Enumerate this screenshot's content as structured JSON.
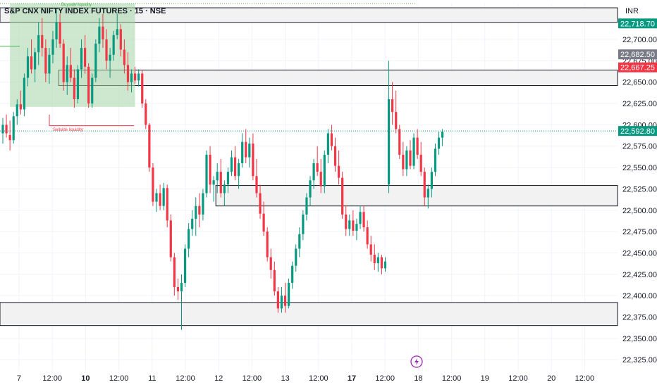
{
  "header": {
    "title": "S&P CNX NIFTY INDEX FUTURES · 15 · NSE",
    "currency": "INR"
  },
  "colors": {
    "up": "#089981",
    "down": "#f23645",
    "grid": "#f0f3fa",
    "zone_fill": "#f2f2f2",
    "zone_border": "#131722",
    "range_fill": "#a5d6a7"
  },
  "chart_data": {
    "type": "candlestick",
    "yticks": [
      22325,
      22350,
      22375,
      22400,
      22425,
      22450,
      22475,
      22500,
      22525,
      22550,
      22575,
      22600,
      22625,
      22650,
      22675,
      22700
    ],
    "ylim": [
      22312,
      22742
    ],
    "xticks": [
      {
        "label": "7",
        "bold": false
      },
      {
        "label": "12:00",
        "bold": false
      },
      {
        "label": "10",
        "bold": true
      },
      {
        "label": "12:00",
        "bold": false
      },
      {
        "label": "11",
        "bold": false
      },
      {
        "label": "12:00",
        "bold": false
      },
      {
        "label": "12",
        "bold": false
      },
      {
        "label": "12:00",
        "bold": false
      },
      {
        "label": "13",
        "bold": false
      },
      {
        "label": "12:00",
        "bold": false
      },
      {
        "label": "17",
        "bold": true
      },
      {
        "label": "12:00",
        "bold": false
      },
      {
        "label": "18",
        "bold": false
      },
      {
        "label": "12:00",
        "bold": false
      },
      {
        "label": "19",
        "bold": false
      },
      {
        "label": "12:00",
        "bold": false
      },
      {
        "label": "20",
        "bold": false
      },
      {
        "label": "12:00",
        "bold": false
      }
    ],
    "price_labels": [
      {
        "name": "level-22718",
        "value": 22718.7,
        "text": "22,718.70",
        "color": "#089981"
      },
      {
        "name": "level-22682",
        "value": 22682.5,
        "text": "22,682.50",
        "color": "#787b86"
      },
      {
        "name": "level-22667",
        "value": 22667.25,
        "text": "22,667.25",
        "color": "#f23645"
      },
      {
        "name": "last-price",
        "value": 22592.8,
        "text": "22,592.80",
        "color": "#089981"
      }
    ],
    "zones": [
      {
        "name": "zone-top",
        "from": 22720,
        "to": 22737,
        "start": 0,
        "end": "right"
      },
      {
        "name": "zone-upper",
        "from": 22646,
        "to": 22664,
        "start": 16,
        "end": "right"
      },
      {
        "name": "zone-middle",
        "from": 22505,
        "to": 22529,
        "start": 60,
        "end": "right"
      },
      {
        "name": "zone-bottom",
        "from": 22365,
        "to": 22392,
        "start": 0,
        "end": "right"
      }
    ],
    "liquidity_notes": [
      "Buyside liquidity",
      "Sellside liquidity"
    ],
    "candles": [
      [
        22590,
        22608,
        22578,
        22600
      ],
      [
        22600,
        22612,
        22585,
        22590
      ],
      [
        22588,
        22605,
        22570,
        22582
      ],
      [
        22582,
        22615,
        22578,
        22610
      ],
      [
        22610,
        22630,
        22600,
        22624
      ],
      [
        22624,
        22640,
        22612,
        22618
      ],
      [
        22618,
        22660,
        22610,
        22655
      ],
      [
        22655,
        22690,
        22645,
        22680
      ],
      [
        22680,
        22700,
        22660,
        22665
      ],
      [
        22665,
        22690,
        22650,
        22685
      ],
      [
        22685,
        22720,
        22670,
        22705
      ],
      [
        22705,
        22725,
        22680,
        22690
      ],
      [
        22690,
        22700,
        22650,
        22660
      ],
      [
        22660,
        22690,
        22648,
        22682
      ],
      [
        22682,
        22710,
        22672,
        22700
      ],
      [
        22700,
        22735,
        22690,
        22720
      ],
      [
        22720,
        22730,
        22690,
        22695
      ],
      [
        22695,
        22700,
        22640,
        22650
      ],
      [
        22650,
        22680,
        22635,
        22670
      ],
      [
        22670,
        22690,
        22650,
        22655
      ],
      [
        22655,
        22665,
        22620,
        22630
      ],
      [
        22630,
        22670,
        22625,
        22665
      ],
      [
        22665,
        22700,
        22655,
        22690
      ],
      [
        22690,
        22705,
        22660,
        22668
      ],
      [
        22668,
        22672,
        22620,
        22625
      ],
      [
        22625,
        22660,
        22620,
        22655
      ],
      [
        22655,
        22700,
        22650,
        22695
      ],
      [
        22695,
        22725,
        22685,
        22715
      ],
      [
        22715,
        22730,
        22690,
        22700
      ],
      [
        22700,
        22712,
        22665,
        22675
      ],
      [
        22675,
        22690,
        22655,
        22682
      ],
      [
        22682,
        22710,
        22675,
        22705
      ],
      [
        22705,
        22730,
        22700,
        22712
      ],
      [
        22712,
        22718,
        22680,
        22688
      ],
      [
        22688,
        22700,
        22660,
        22670
      ],
      [
        22670,
        22685,
        22640,
        22650
      ],
      [
        22650,
        22665,
        22638,
        22660
      ],
      [
        22660,
        22668,
        22648,
        22652
      ],
      [
        22652,
        22665,
        22645,
        22660
      ],
      [
        22660,
        22664,
        22620,
        22625
      ],
      [
        22625,
        22630,
        22595,
        22600
      ],
      [
        22600,
        22602,
        22545,
        22550
      ],
      [
        22550,
        22555,
        22505,
        22510
      ],
      [
        22510,
        22525,
        22498,
        22520
      ],
      [
        22520,
        22530,
        22500,
        22505
      ],
      [
        22505,
        22532,
        22500,
        22526
      ],
      [
        22526,
        22530,
        22480,
        22488
      ],
      [
        22488,
        22495,
        22440,
        22445
      ],
      [
        22445,
        22450,
        22400,
        22410
      ],
      [
        22410,
        22420,
        22395,
        22405
      ],
      [
        22405,
        22425,
        22360,
        22415
      ],
      [
        22415,
        22460,
        22410,
        22455
      ],
      [
        22455,
        22485,
        22445,
        22478
      ],
      [
        22478,
        22500,
        22470,
        22490
      ],
      [
        22490,
        22515,
        22470,
        22505
      ],
      [
        22505,
        22520,
        22480,
        22495
      ],
      [
        22495,
        22525,
        22488,
        22520
      ],
      [
        22520,
        22570,
        22515,
        22565
      ],
      [
        22565,
        22575,
        22520,
        22530
      ],
      [
        22530,
        22540,
        22510,
        22535
      ],
      [
        22535,
        22555,
        22520,
        22545
      ],
      [
        22545,
        22560,
        22515,
        22520
      ],
      [
        22520,
        22535,
        22505,
        22530
      ],
      [
        22530,
        22550,
        22520,
        22545
      ],
      [
        22545,
        22570,
        22540,
        22562
      ],
      [
        22562,
        22575,
        22535,
        22540
      ],
      [
        22540,
        22560,
        22525,
        22555
      ],
      [
        22555,
        22590,
        22550,
        22580
      ],
      [
        22580,
        22595,
        22555,
        22562
      ],
      [
        22562,
        22585,
        22550,
        22578
      ],
      [
        22578,
        22590,
        22535,
        22540
      ],
      [
        22540,
        22560,
        22515,
        22520
      ],
      [
        22520,
        22530,
        22490,
        22496
      ],
      [
        22496,
        22510,
        22470,
        22475
      ],
      [
        22475,
        22480,
        22440,
        22445
      ],
      [
        22445,
        22455,
        22420,
        22430
      ],
      [
        22430,
        22440,
        22400,
        22405
      ],
      [
        22405,
        22410,
        22380,
        22385
      ],
      [
        22385,
        22410,
        22380,
        22400
      ],
      [
        22400,
        22415,
        22380,
        22388
      ],
      [
        22388,
        22420,
        22385,
        22415
      ],
      [
        22415,
        22440,
        22408,
        22435
      ],
      [
        22435,
        22460,
        22428,
        22455
      ],
      [
        22455,
        22480,
        22445,
        22472
      ],
      [
        22472,
        22500,
        22465,
        22495
      ],
      [
        22495,
        22520,
        22488,
        22515
      ],
      [
        22515,
        22540,
        22505,
        22535
      ],
      [
        22535,
        22560,
        22525,
        22555
      ],
      [
        22555,
        22575,
        22540,
        22545
      ],
      [
        22545,
        22560,
        22520,
        22528
      ],
      [
        22528,
        22570,
        22520,
        22565
      ],
      [
        22565,
        22595,
        22555,
        22590
      ],
      [
        22590,
        22600,
        22570,
        22575
      ],
      [
        22575,
        22585,
        22545,
        22552
      ],
      [
        22552,
        22570,
        22530,
        22538
      ],
      [
        22538,
        22545,
        22490,
        22495
      ],
      [
        22495,
        22505,
        22470,
        22478
      ],
      [
        22478,
        22495,
        22470,
        22488
      ],
      [
        22488,
        22500,
        22470,
        22476
      ],
      [
        22476,
        22490,
        22465,
        22484
      ],
      [
        22484,
        22505,
        22478,
        22498
      ],
      [
        22498,
        22505,
        22475,
        22480
      ],
      [
        22480,
        22488,
        22455,
        22460
      ],
      [
        22460,
        22470,
        22440,
        22448
      ],
      [
        22448,
        22460,
        22430,
        22438
      ],
      [
        22438,
        22450,
        22428,
        22445
      ],
      [
        22445,
        22448,
        22425,
        22432
      ],
      [
        22432,
        22445,
        22428,
        22440
      ],
      [
        22530,
        22675,
        22520,
        22630
      ],
      [
        22630,
        22650,
        22600,
        22615
      ],
      [
        22615,
        22640,
        22590,
        22595
      ],
      [
        22595,
        22600,
        22560,
        22565
      ],
      [
        22565,
        22580,
        22540,
        22548
      ],
      [
        22548,
        22575,
        22540,
        22570
      ],
      [
        22570,
        22582,
        22548,
        22552
      ],
      [
        22552,
        22590,
        22548,
        22585
      ],
      [
        22585,
        22595,
        22560,
        22565
      ],
      [
        22565,
        22580,
        22540,
        22545
      ],
      [
        22545,
        22550,
        22505,
        22515
      ],
      [
        22515,
        22530,
        22502,
        22525
      ],
      [
        22525,
        22550,
        22515,
        22545
      ],
      [
        22545,
        22578,
        22540,
        22572
      ],
      [
        22572,
        22592,
        22565,
        22585
      ],
      [
        22585,
        22595,
        22575,
        22592
      ]
    ]
  }
}
